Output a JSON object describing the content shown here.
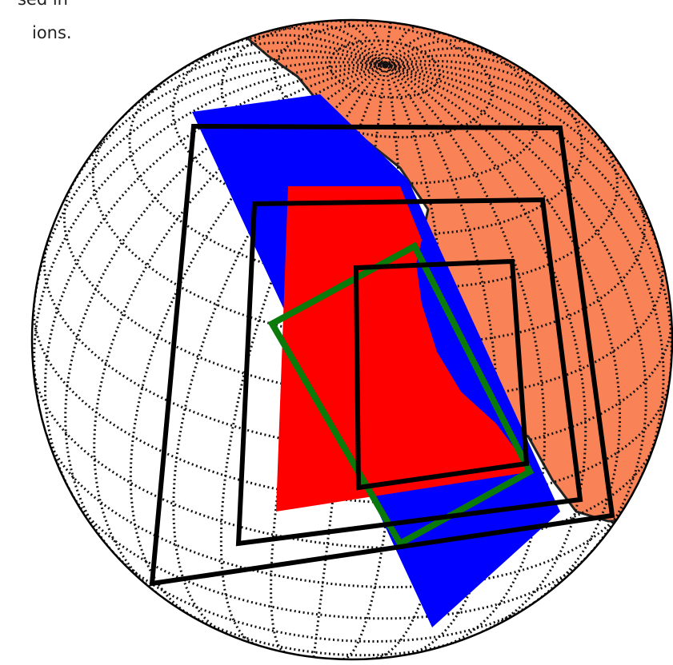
{
  "caption": {
    "lines": [
      "sed in",
      "ions."
    ]
  }
}
